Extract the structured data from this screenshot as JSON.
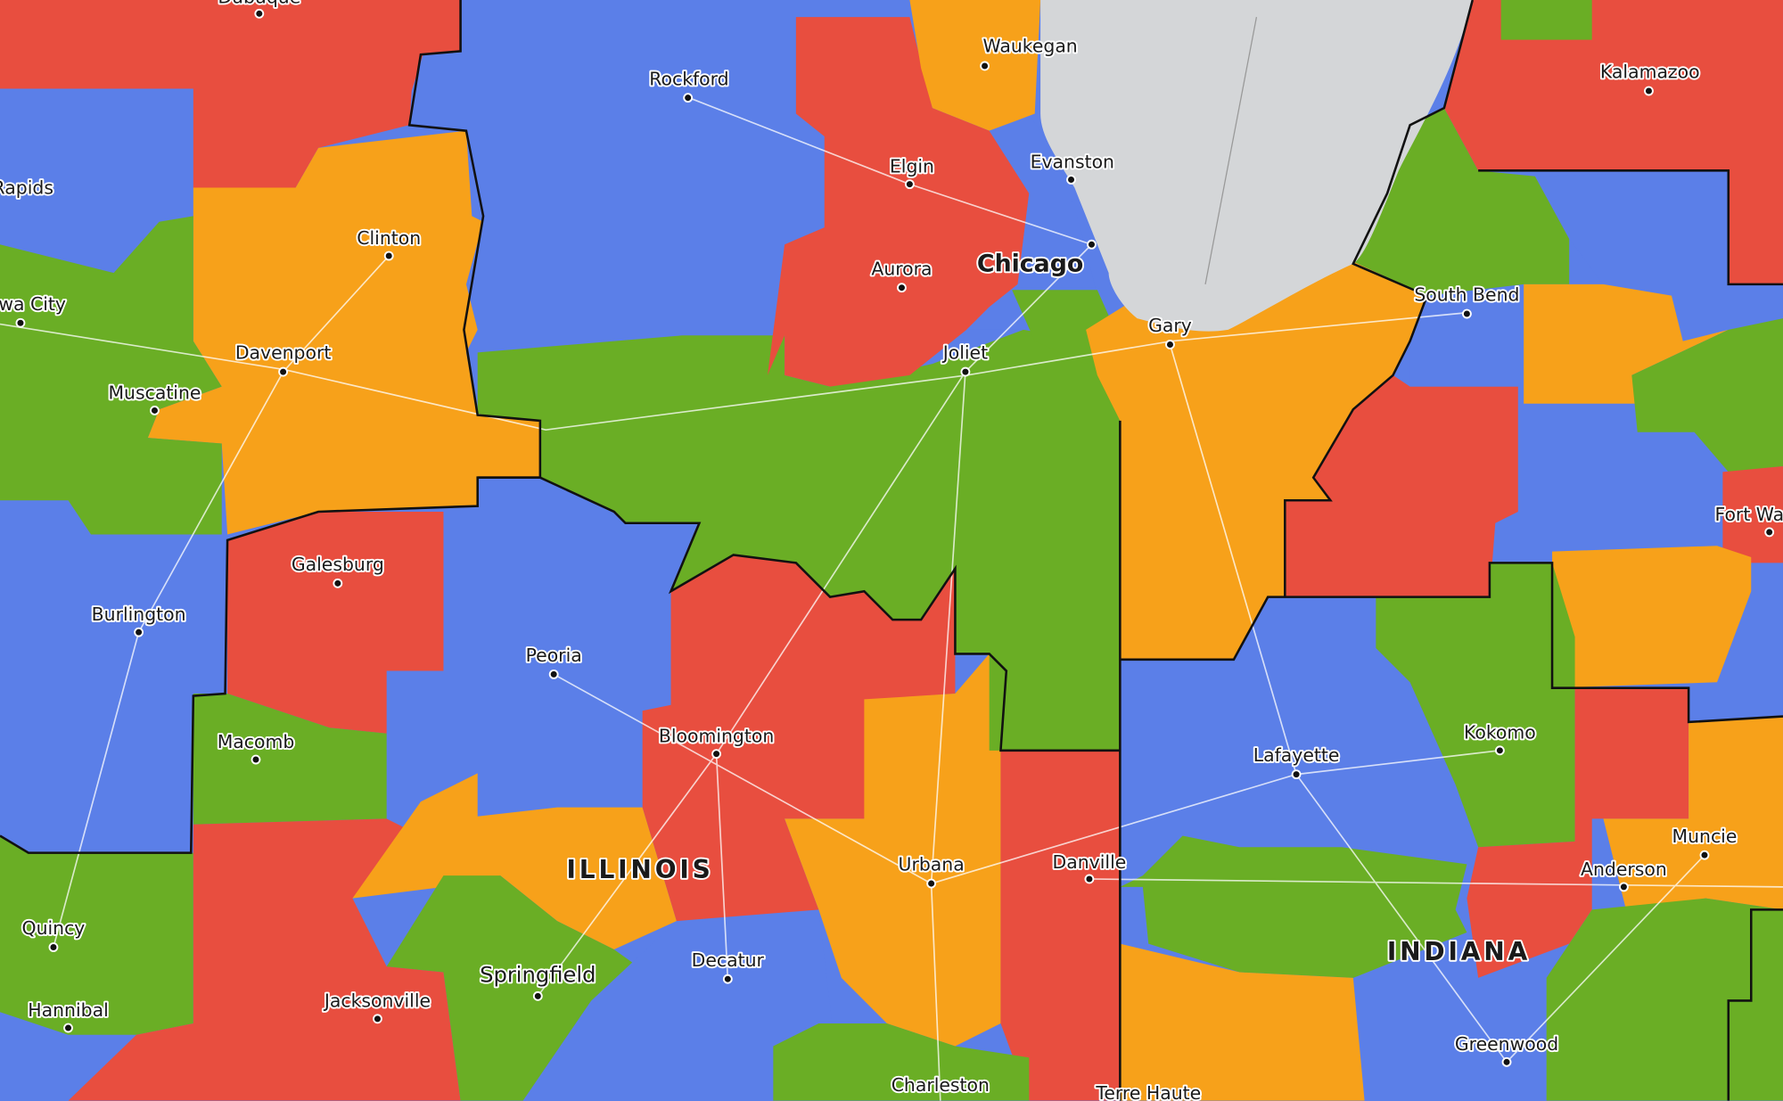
{
  "cities": [
    "Dubuque",
    "Rockford",
    "Waukegan",
    "Kalamazoo",
    "Elgin",
    "Evanston",
    "Cedar Rapids",
    "Clinton",
    "Chicago",
    "Aurora",
    "Iowa City",
    "South Bend",
    "Gary",
    "Davenport",
    "Joliet",
    "Muscatine",
    "Fort Wayne",
    "Galesburg",
    "Burlington",
    "Peoria",
    "Bloomington",
    "Kokomo",
    "Macomb",
    "Lafayette",
    "Muncie",
    "Anderson",
    "Urbana",
    "Danville",
    "Quincy",
    "Decatur",
    "Springfield",
    "Hannibal",
    "Jacksonville",
    "Greenwood",
    "Charleston",
    "Terre Haute"
  ],
  "states": [
    "ILLINOIS",
    "INDIANA"
  ]
}
